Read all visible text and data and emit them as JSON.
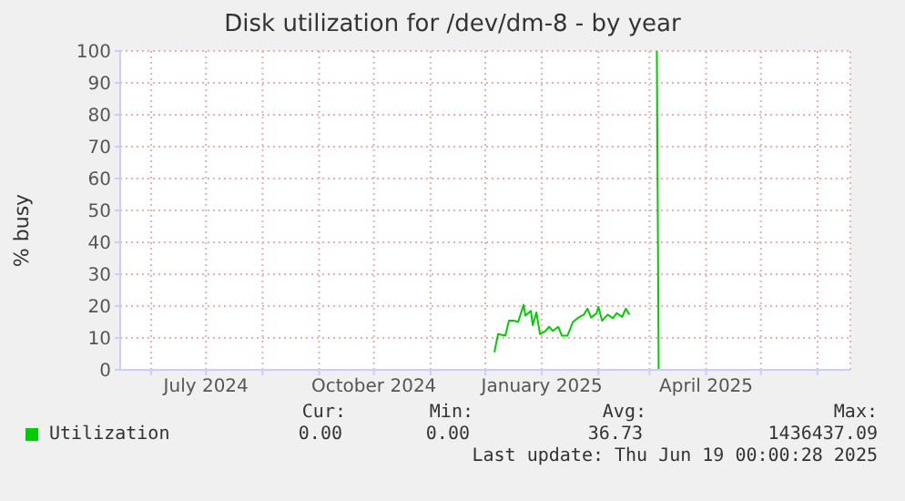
{
  "chart_data": {
    "type": "line",
    "title": "Disk utilization for /dev/dm-8 - by year",
    "ylabel": "% busy",
    "x": [
      "2024-12-06",
      "2024-12-08",
      "2024-12-12",
      "2024-12-14",
      "2024-12-17",
      "2024-12-19",
      "2024-12-22",
      "2024-12-23",
      "2024-12-26",
      "2024-12-27",
      "2024-12-29",
      "2024-12-31",
      "2025-01-03",
      "2025-01-05",
      "2025-01-07",
      "2025-01-10",
      "2025-01-12",
      "2025-01-15",
      "2025-01-18",
      "2025-01-21",
      "2025-01-24",
      "2025-01-26",
      "2025-01-28",
      "2025-01-31",
      "2025-02-01",
      "2025-02-03",
      "2025-02-06",
      "2025-02-09",
      "2025-02-11",
      "2025-02-14",
      "2025-02-16",
      "2025-02-18",
      "2025-02-19",
      "2025-03-05",
      "2025-03-06",
      "2025-06-19"
    ],
    "series": [
      {
        "name": "Utilization",
        "color": "#00cc00",
        "values": [
          5.5,
          11.2,
          10.7,
          15.4,
          15.4,
          15,
          20.4,
          17,
          18.5,
          14,
          18,
          11.2,
          12.2,
          13.5,
          12.2,
          13.5,
          10.7,
          10.7,
          15,
          16.4,
          17.3,
          19.2,
          16.4,
          17.8,
          19.8,
          15.4,
          17.3,
          16.2,
          17.8,
          16.6,
          19.2,
          17.3,
          null,
          100,
          0,
          0
        ]
      }
    ],
    "xlim": [
      "2024-05-15",
      "2025-06-19"
    ],
    "xticks": [
      {
        "value": "2024-06-01",
        "label": null
      },
      {
        "value": "2024-07-01",
        "label": "July 2024"
      },
      {
        "value": "2024-08-01",
        "label": null
      },
      {
        "value": "2024-09-01",
        "label": null
      },
      {
        "value": "2024-10-01",
        "label": "October 2024"
      },
      {
        "value": "2024-11-01",
        "label": null
      },
      {
        "value": "2024-12-01",
        "label": null
      },
      {
        "value": "2025-01-01",
        "label": "January 2025"
      },
      {
        "value": "2025-02-01",
        "label": null
      },
      {
        "value": "2025-03-01",
        "label": null
      },
      {
        "value": "2025-04-01",
        "label": "April 2025"
      },
      {
        "value": "2025-05-01",
        "label": null
      },
      {
        "value": "2025-06-01",
        "label": null
      }
    ],
    "ylim": [
      0,
      100
    ],
    "yticks": [
      0,
      10,
      20,
      30,
      40,
      50,
      60,
      70,
      80,
      90,
      100
    ],
    "grid": true,
    "legend": "bottom",
    "annotations": [
      "Cur:",
      "Min:",
      "Avg:",
      "Max:",
      "0.00",
      "0.00",
      "36.73",
      "1436437.09",
      "Last update: Thu Jun 19 00:00:28 2025"
    ]
  }
}
